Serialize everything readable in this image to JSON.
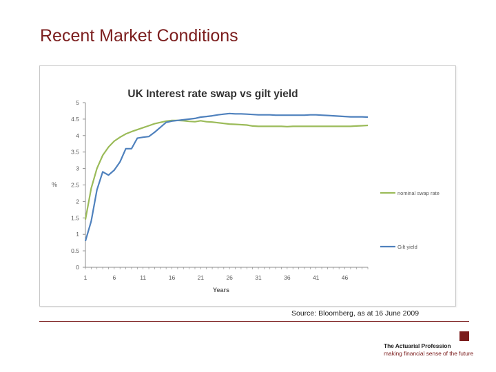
{
  "slide": {
    "title": "Recent Market Conditions",
    "source": "Source: Bloomberg, as at 16 June 2009"
  },
  "branding": {
    "name": "The Actuarial Profession",
    "tagline": "making financial sense of the future",
    "accent_color": "#7b1d1d"
  },
  "chart_data": {
    "type": "line",
    "title": "UK Interest rate swap vs gilt yield",
    "xlabel": "Years",
    "ylabel": "%",
    "xlim": [
      1,
      50
    ],
    "ylim": [
      0,
      5
    ],
    "x_ticks": [
      1,
      6,
      11,
      16,
      21,
      26,
      31,
      36,
      41,
      46
    ],
    "y_ticks": [
      "0",
      "0.5",
      "1",
      "1.5",
      "2",
      "2.5",
      "3",
      "3.5",
      "4",
      "4.5",
      "5"
    ],
    "grid": false,
    "legend_position": "right",
    "x": [
      1,
      2,
      3,
      4,
      5,
      6,
      7,
      8,
      9,
      10,
      11,
      12,
      13,
      14,
      15,
      16,
      17,
      18,
      19,
      20,
      21,
      22,
      23,
      24,
      25,
      26,
      27,
      28,
      29,
      30,
      31,
      32,
      33,
      34,
      35,
      36,
      37,
      38,
      39,
      40,
      41,
      42,
      43,
      44,
      45,
      46,
      47,
      48,
      49,
      50
    ],
    "series": [
      {
        "name": "nominal swap rate",
        "color": "#9bbb59",
        "values": [
          1.45,
          2.4,
          3.0,
          3.4,
          3.65,
          3.83,
          3.95,
          4.05,
          4.12,
          4.18,
          4.24,
          4.3,
          4.36,
          4.4,
          4.44,
          4.46,
          4.46,
          4.45,
          4.43,
          4.42,
          4.45,
          4.42,
          4.41,
          4.39,
          4.37,
          4.35,
          4.34,
          4.33,
          4.32,
          4.29,
          4.28,
          4.28,
          4.28,
          4.28,
          4.28,
          4.27,
          4.28,
          4.28,
          4.28,
          4.28,
          4.28,
          4.28,
          4.28,
          4.28,
          4.28,
          4.28,
          4.28,
          4.29,
          4.3,
          4.31
        ]
      },
      {
        "name": "Gilt yield",
        "color": "#4f81bd",
        "values": [
          0.8,
          1.4,
          2.35,
          2.9,
          2.8,
          2.95,
          3.2,
          3.6,
          3.6,
          3.92,
          3.95,
          3.97,
          4.1,
          4.25,
          4.4,
          4.44,
          4.46,
          4.48,
          4.5,
          4.52,
          4.56,
          4.58,
          4.6,
          4.63,
          4.65,
          4.67,
          4.66,
          4.66,
          4.65,
          4.64,
          4.63,
          4.63,
          4.63,
          4.62,
          4.62,
          4.62,
          4.62,
          4.62,
          4.62,
          4.63,
          4.63,
          4.62,
          4.61,
          4.6,
          4.59,
          4.58,
          4.57,
          4.57,
          4.57,
          4.56
        ]
      }
    ]
  }
}
